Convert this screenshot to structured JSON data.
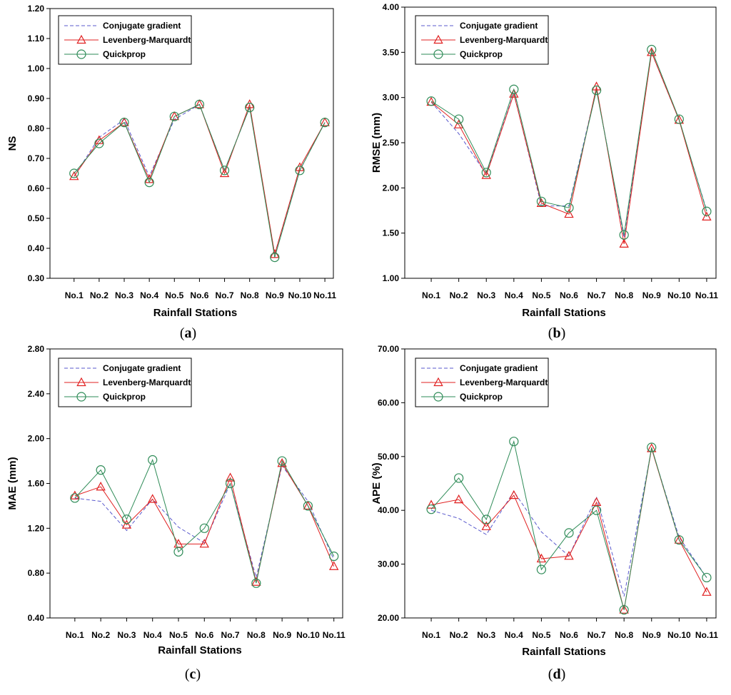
{
  "colors": {
    "conjugate": "#5a5acd",
    "levenberg": "#e02020",
    "quickprop": "#2e8b57"
  },
  "legend_labels": [
    "Conjugate gradient",
    "Levenberg-Marquardt",
    "Quickprop"
  ],
  "chart_data": [
    {
      "panel": "(a)",
      "panel_letter": "a",
      "type": "line",
      "xlabel": "Rainfall Stations",
      "ylabel": "NS",
      "ylim": [
        0.3,
        1.2
      ],
      "yticks": [
        "0.30",
        "0.40",
        "0.50",
        "0.60",
        "0.70",
        "0.80",
        "0.90",
        "1.00",
        "1.10",
        "1.20"
      ],
      "ytick_values": [
        0.3,
        0.4,
        0.5,
        0.6,
        0.7,
        0.8,
        0.9,
        1.0,
        1.1,
        1.2
      ],
      "categories": [
        "No.1",
        "No.2",
        "No.3",
        "No.4",
        "No.5",
        "No.6",
        "No.7",
        "No.8",
        "No.9",
        "No.10",
        "No.11"
      ],
      "legend": "top-left",
      "grid": false,
      "series": [
        {
          "name": "Conjugate gradient",
          "values": [
            0.64,
            0.77,
            0.83,
            0.64,
            0.83,
            0.88,
            0.66,
            0.87,
            0.38,
            0.66,
            0.82
          ]
        },
        {
          "name": "Levenberg-Marquardt",
          "values": [
            0.64,
            0.76,
            0.82,
            0.63,
            0.84,
            0.88,
            0.65,
            0.88,
            0.38,
            0.67,
            0.82
          ]
        },
        {
          "name": "Quickprop",
          "values": [
            0.65,
            0.75,
            0.82,
            0.62,
            0.84,
            0.88,
            0.66,
            0.87,
            0.37,
            0.66,
            0.82
          ]
        }
      ]
    },
    {
      "panel": "(b)",
      "panel_letter": "b",
      "type": "line",
      "xlabel": "Rainfall Stations",
      "ylabel": "RMSE (mm)",
      "ylim": [
        1.0,
        4.0
      ],
      "yticks": [
        "1.00",
        "1.50",
        "2.00",
        "2.50",
        "3.00",
        "3.50",
        "4.00"
      ],
      "ytick_values": [
        1.0,
        1.5,
        2.0,
        2.5,
        3.0,
        3.5,
        4.0
      ],
      "categories": [
        "No.1",
        "No.2",
        "No.3",
        "No.4",
        "No.5",
        "No.6",
        "No.7",
        "No.8",
        "No.9",
        "No.10",
        "No.11"
      ],
      "legend": "top-left",
      "grid": false,
      "series": [
        {
          "name": "Conjugate gradient",
          "values": [
            2.95,
            2.6,
            2.15,
            3.05,
            1.8,
            1.8,
            3.1,
            1.45,
            3.5,
            2.75,
            1.75
          ]
        },
        {
          "name": "Levenberg-Marquardt",
          "values": [
            2.95,
            2.7,
            2.14,
            3.04,
            1.83,
            1.71,
            3.12,
            1.38,
            3.5,
            2.75,
            1.68
          ]
        },
        {
          "name": "Quickprop",
          "values": [
            2.96,
            2.76,
            2.17,
            3.09,
            1.85,
            1.78,
            3.08,
            1.48,
            3.53,
            2.76,
            1.74
          ]
        }
      ]
    },
    {
      "panel": "(c)",
      "panel_letter": "c",
      "type": "line",
      "xlabel": "Rainfall Stations",
      "ylabel": "MAE (mm)",
      "ylim": [
        0.4,
        2.8
      ],
      "yticks": [
        "0.40",
        "0.80",
        "1.20",
        "1.60",
        "2.00",
        "2.40",
        "2.80"
      ],
      "ytick_values": [
        0.4,
        0.8,
        1.2,
        1.6,
        2.0,
        2.4,
        2.8
      ],
      "categories": [
        "No.1",
        "No.2",
        "No.3",
        "No.4",
        "No.5",
        "No.6",
        "No.7",
        "No.8",
        "No.9",
        "No.10",
        "No.11"
      ],
      "legend": "top-left",
      "grid": false,
      "series": [
        {
          "name": "Conjugate gradient",
          "values": [
            1.47,
            1.44,
            1.18,
            1.46,
            1.21,
            1.07,
            1.6,
            0.76,
            1.76,
            1.44,
            0.92
          ]
        },
        {
          "name": "Levenberg-Marquardt",
          "values": [
            1.49,
            1.57,
            1.23,
            1.46,
            1.06,
            1.06,
            1.65,
            0.72,
            1.78,
            1.4,
            0.86
          ]
        },
        {
          "name": "Quickprop",
          "values": [
            1.47,
            1.72,
            1.28,
            1.81,
            0.99,
            1.2,
            1.6,
            0.71,
            1.8,
            1.4,
            0.95
          ]
        }
      ]
    },
    {
      "panel": "(d)",
      "panel_letter": "d",
      "type": "line",
      "xlabel": "Rainfall Stations",
      "ylabel": "APE (%)",
      "ylim": [
        20.0,
        70.0
      ],
      "yticks": [
        "20.00",
        "30.00",
        "40.00",
        "50.00",
        "60.00",
        "70.00"
      ],
      "ytick_values": [
        20.0,
        30.0,
        40.0,
        50.0,
        60.0,
        70.0
      ],
      "categories": [
        "No.1",
        "No.2",
        "No.3",
        "No.4",
        "No.5",
        "No.6",
        "No.7",
        "No.8",
        "No.9",
        "No.10",
        "No.11"
      ],
      "legend": "top-left",
      "grid": false,
      "series": [
        {
          "name": "Conjugate gradient",
          "values": [
            40.0,
            38.5,
            35.5,
            43.5,
            36.0,
            31.5,
            42.5,
            24.0,
            51.5,
            35.0,
            27.5
          ]
        },
        {
          "name": "Levenberg-Marquardt",
          "values": [
            41.0,
            42.0,
            37.0,
            42.8,
            31.0,
            31.5,
            41.5,
            21.5,
            51.5,
            34.5,
            24.8
          ]
        },
        {
          "name": "Quickprop",
          "values": [
            40.2,
            46.0,
            38.3,
            52.8,
            29.0,
            35.8,
            40.0,
            21.5,
            51.7,
            34.5,
            27.5
          ]
        }
      ]
    }
  ]
}
